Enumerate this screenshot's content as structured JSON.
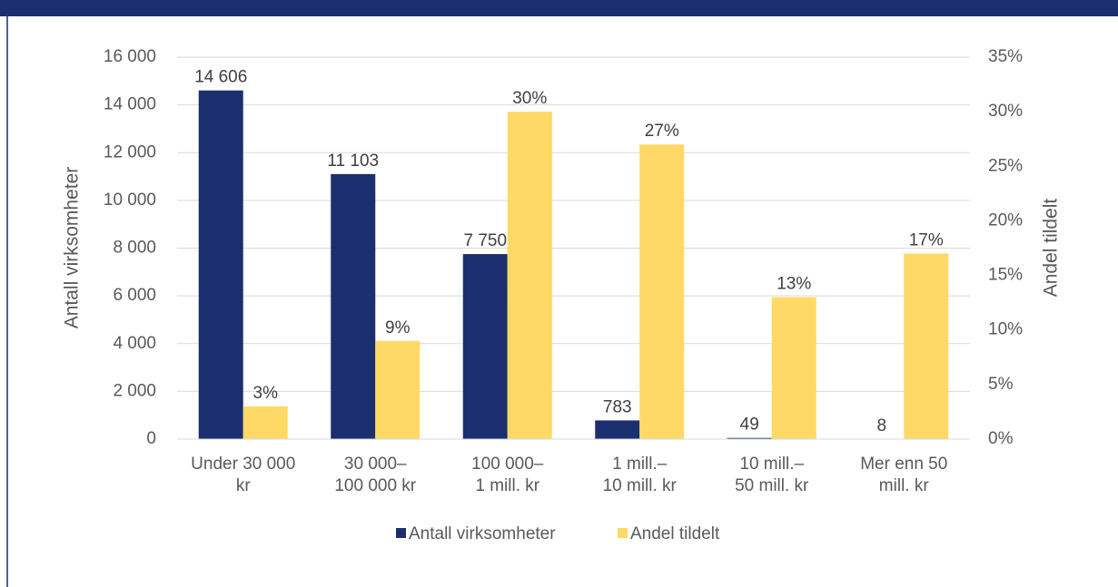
{
  "chart_data": {
    "type": "bar",
    "categories": [
      "Under 30 000\nkr",
      "30 000–\n100 000 kr",
      "100 000–\n1 mill. kr",
      "1 mill.–\n10 mill. kr",
      "10 mill.–\n50 mill. kr",
      "Mer enn 50\nmill. kr"
    ],
    "series": [
      {
        "name": "Antall virksomheter",
        "color": "#1b2f6e",
        "values": [
          14606,
          11103,
          7750,
          783,
          49,
          8
        ],
        "value_labels": [
          "14 606",
          "11 103",
          "7 750",
          "783",
          "49",
          "8"
        ]
      },
      {
        "name": "Andel tildelt",
        "color": "#ffd966",
        "axis": "y2",
        "values": [
          3,
          9,
          30,
          27,
          13,
          17
        ],
        "value_labels": [
          "3%",
          "9%",
          "30%",
          "27%",
          "13%",
          "17%"
        ]
      }
    ],
    "ylabel": "Antall virksomheter",
    "y2label": "Andel tildelt",
    "ylim": [
      0,
      16000
    ],
    "yticks": [
      0,
      {
        "value": 2000,
        "label": "2 000"
      },
      {
        "value": 4000,
        "label": "4 000"
      },
      {
        "value": 6000,
        "label": "6 000"
      },
      {
        "value": 8000,
        "label": "8 000"
      },
      {
        "value": 10000,
        "label": "10 000"
      },
      {
        "value": 12000,
        "label": "12 000"
      },
      {
        "value": 14000,
        "label": "14 000"
      },
      {
        "value": 16000,
        "label": "16 000"
      }
    ],
    "y2lim": [
      0,
      35
    ],
    "y2ticks": [
      {
        "value": 0,
        "label": "0%"
      },
      {
        "value": 5,
        "label": "5%"
      },
      {
        "value": 10,
        "label": "10%"
      },
      {
        "value": 15,
        "label": "15%"
      },
      {
        "value": 20,
        "label": "20%"
      },
      {
        "value": 25,
        "label": "25%"
      },
      {
        "value": 30,
        "label": "30%"
      },
      {
        "value": 35,
        "label": "35%"
      }
    ],
    "grid": true,
    "legend": "bottom"
  }
}
